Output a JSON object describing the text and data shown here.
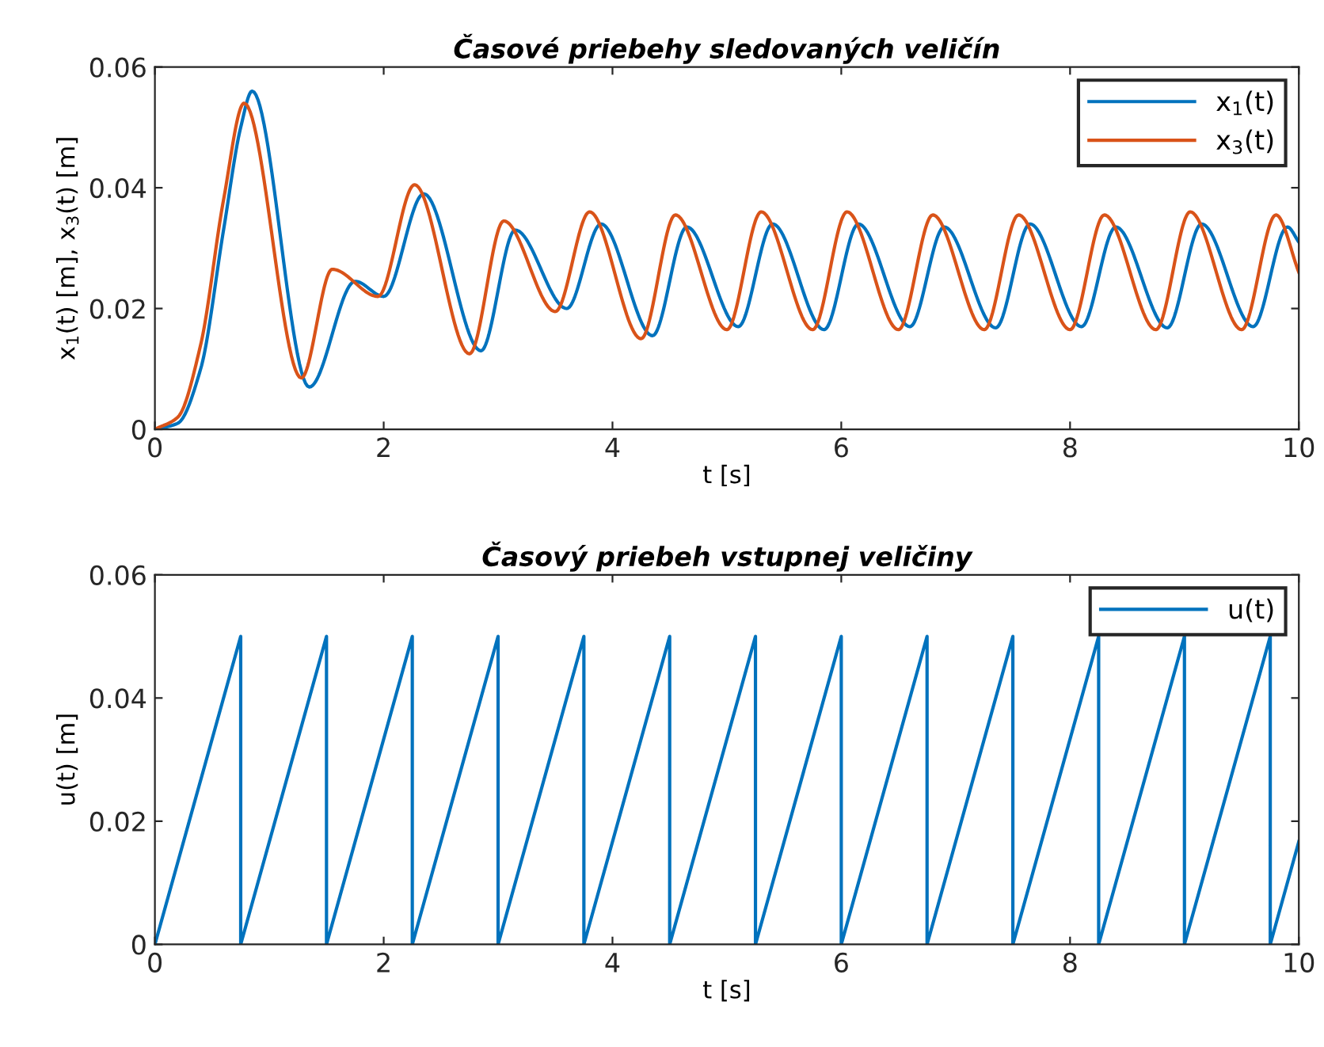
{
  "chart_data": [
    {
      "type": "line",
      "title": "Časové priebehy sledovaných veličín",
      "xlabel": "t [s]",
      "ylabel": "x$_{1}$(t) [m], x$_{3}$(t) [m]",
      "xlim": [
        0,
        10
      ],
      "ylim": [
        0,
        0.06
      ],
      "xticks": [
        0,
        2,
        4,
        6,
        8,
        10
      ],
      "yticks": [
        0,
        0.02,
        0.04,
        0.06
      ],
      "legend": "top right",
      "grid": false,
      "series": [
        {
          "name": "x$_{1}$(t)",
          "color": "#0072bd",
          "x": [
            0,
            0.2,
            0.4,
            0.6,
            0.75,
            0.85,
            1.35,
            1.75,
            2.0,
            2.35,
            2.85,
            3.15,
            3.6,
            3.9,
            4.35,
            4.65,
            5.1,
            5.4,
            5.85,
            6.15,
            6.6,
            6.9,
            7.35,
            7.65,
            8.1,
            8.4,
            8.85,
            9.15,
            9.6,
            9.9,
            10
          ],
          "values": [
            0,
            0.001,
            0.01,
            0.033,
            0.05,
            0.056,
            0.007,
            0.0245,
            0.022,
            0.039,
            0.013,
            0.033,
            0.02,
            0.034,
            0.0155,
            0.0335,
            0.017,
            0.034,
            0.0165,
            0.034,
            0.017,
            0.0335,
            0.0168,
            0.034,
            0.017,
            0.0335,
            0.0168,
            0.034,
            0.017,
            0.0335,
            0.031
          ]
        },
        {
          "name": "x$_{3}$(t)",
          "color": "#d95319",
          "x": [
            0,
            0.2,
            0.4,
            0.6,
            0.78,
            1.28,
            1.55,
            1.95,
            2.27,
            2.75,
            3.05,
            3.5,
            3.8,
            4.25,
            4.55,
            5.0,
            5.3,
            5.75,
            6.05,
            6.5,
            6.8,
            7.25,
            7.55,
            8.0,
            8.3,
            8.75,
            9.05,
            9.5,
            9.8,
            10
          ],
          "values": [
            0,
            0.002,
            0.014,
            0.038,
            0.054,
            0.0085,
            0.0265,
            0.022,
            0.0405,
            0.0125,
            0.0345,
            0.0195,
            0.036,
            0.015,
            0.0355,
            0.0165,
            0.036,
            0.0165,
            0.036,
            0.0165,
            0.0355,
            0.0165,
            0.0355,
            0.0165,
            0.0355,
            0.0165,
            0.036,
            0.0165,
            0.0355,
            0.026
          ]
        }
      ]
    },
    {
      "type": "line",
      "title": "Časový priebeh vstupnej veličiny",
      "xlabel": "t [s]",
      "ylabel": "u(t) [m]",
      "xlim": [
        0,
        10
      ],
      "ylim": [
        0,
        0.06
      ],
      "xticks": [
        0,
        2,
        4,
        6,
        8,
        10
      ],
      "yticks": [
        0,
        0.02,
        0.04,
        0.06
      ],
      "legend": "top right",
      "grid": false,
      "series": [
        {
          "name": "u(t)",
          "color": "#0072bd",
          "x": [
            0,
            0.75,
            0.75,
            1.5,
            1.5,
            2.25,
            2.25,
            3.0,
            3.0,
            3.75,
            3.75,
            4.5,
            4.5,
            5.25,
            5.25,
            6.0,
            6.0,
            6.75,
            6.75,
            7.5,
            7.5,
            8.25,
            8.25,
            9.0,
            9.0,
            9.75,
            9.75,
            10
          ],
          "values": [
            0,
            0.05,
            0,
            0.05,
            0,
            0.05,
            0,
            0.05,
            0,
            0.05,
            0,
            0.05,
            0,
            0.05,
            0,
            0.05,
            0,
            0.05,
            0,
            0.05,
            0,
            0.05,
            0,
            0.05,
            0,
            0.05,
            0,
            0.0167
          ]
        }
      ]
    }
  ]
}
